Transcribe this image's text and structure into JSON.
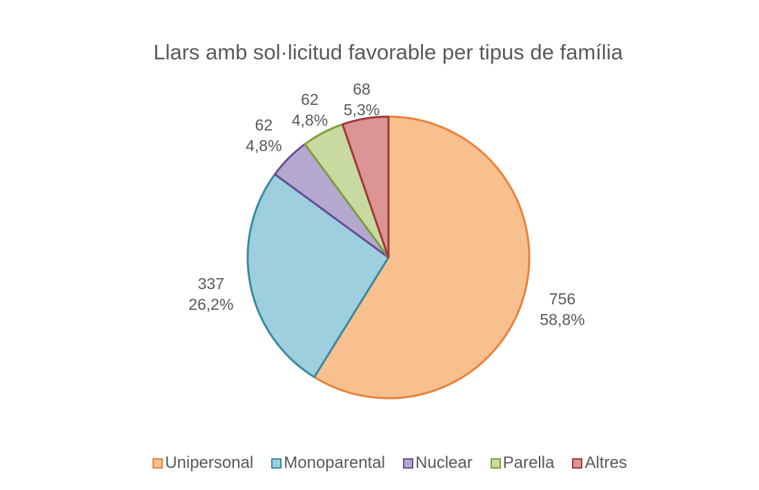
{
  "chart_data": {
    "type": "pie",
    "title": "Llars amb sol·licitud favorable per tipus de família",
    "categories": [
      "Unipersonal",
      "Monoparental",
      "Nuclear",
      "Parella",
      "Altres"
    ],
    "values": [
      756,
      337,
      62,
      62,
      68
    ],
    "percent_labels": [
      "58,8%",
      "26,2%",
      "4,8%",
      "4,8%",
      "5,3%"
    ],
    "value_labels": [
      "756",
      "337",
      "62",
      "62",
      "68"
    ],
    "colors": {
      "fill": [
        "#F8C08F",
        "#9DCFDF",
        "#B5A8CF",
        "#C8DAA0",
        "#DC9594"
      ],
      "stroke": [
        "#E8823A",
        "#3A8AA0",
        "#6A4E96",
        "#7DA040",
        "#A0393A"
      ]
    },
    "start_angle": "12 o'clock, clockwise",
    "legend": "bottom"
  }
}
